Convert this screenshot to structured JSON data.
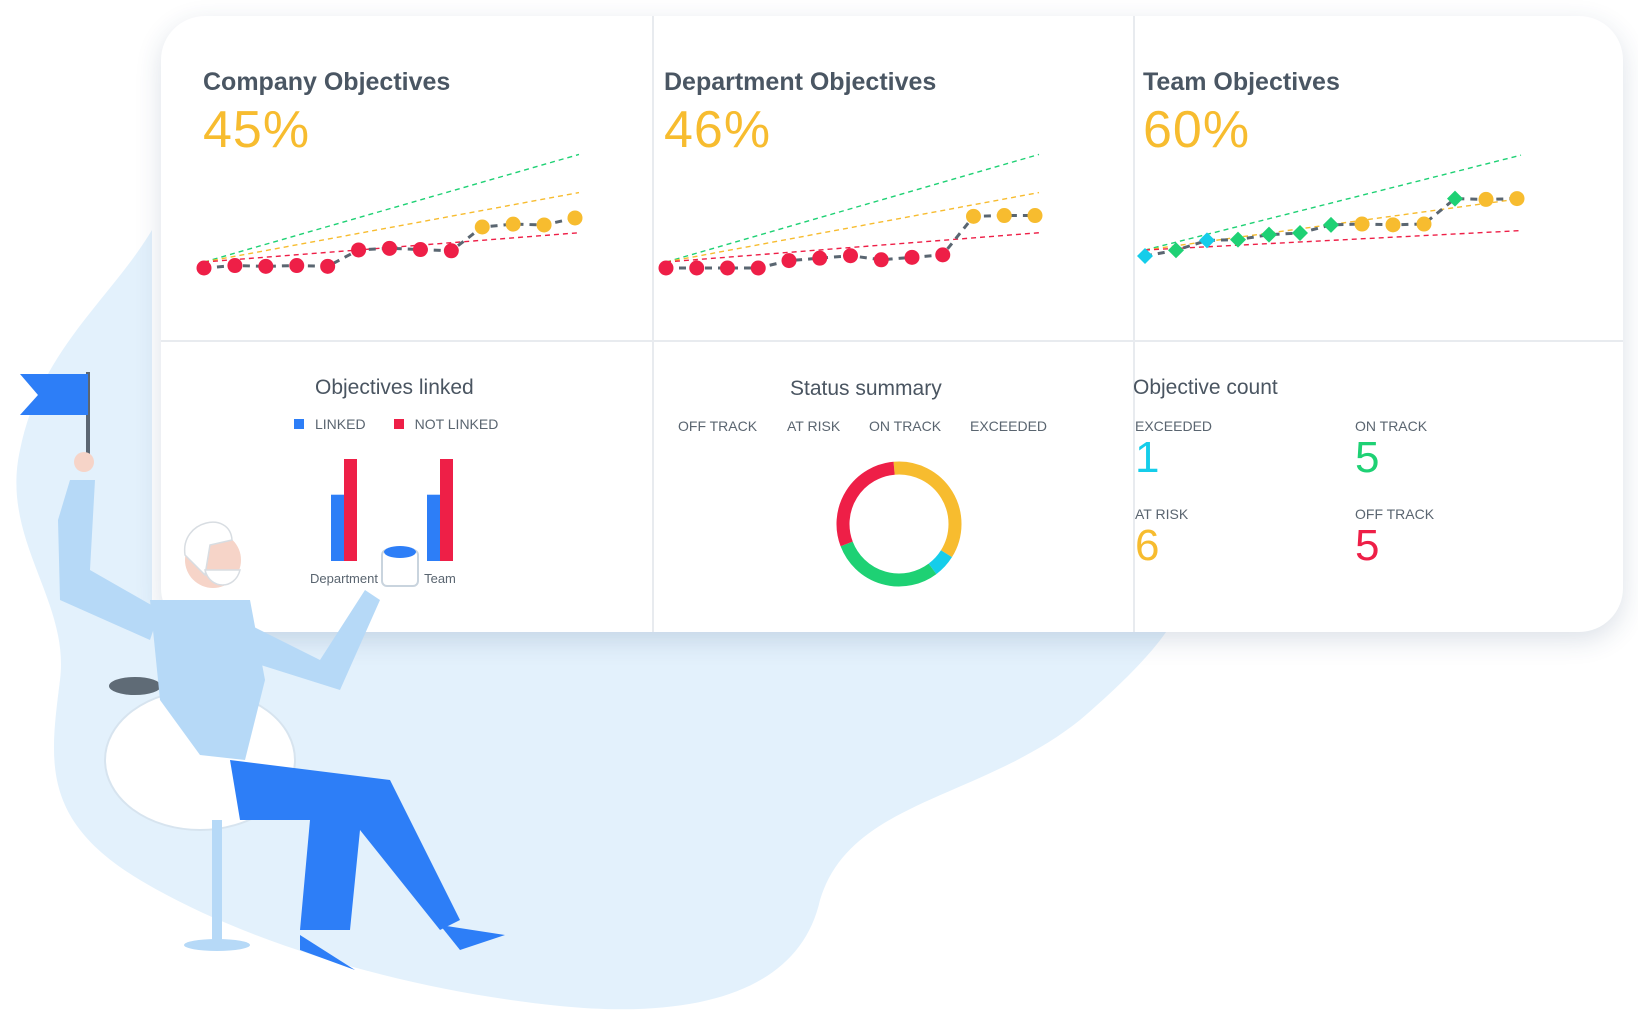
{
  "colors": {
    "accent_yellow": "#f7bc2f",
    "off_track": "#ee1f47",
    "at_risk": "#f7bc2f",
    "on_track": "#1ed174",
    "exceeded": "#15cdea",
    "linked": "#2d7ef7",
    "not_linked": "#ee1f47",
    "title_text": "#4a5663",
    "backdrop": "#e3f1fc"
  },
  "company": {
    "title": "Company Objectives",
    "percent": "45%",
    "chart_data": {
      "type": "line",
      "title": "Company Objectives",
      "x": [
        1,
        2,
        3,
        4,
        5,
        6,
        7,
        8,
        9,
        10,
        11,
        12,
        13
      ],
      "values": [
        0.0,
        0.06,
        0.04,
        0.06,
        0.04,
        0.44,
        0.48,
        0.45,
        0.42,
        1.0,
        1.07,
        1.05,
        1.22
      ],
      "point_status": [
        "off_track",
        "off_track",
        "off_track",
        "off_track",
        "off_track",
        "off_track",
        "off_track",
        "off_track",
        "off_track",
        "at_risk",
        "at_risk",
        "at_risk",
        "at_risk"
      ],
      "trend_lines": [
        {
          "status": "on_track",
          "y_end": 2.77
        },
        {
          "status": "at_risk",
          "y_end": 1.84
        },
        {
          "status": "off_track",
          "y_end": 0.86
        }
      ]
    }
  },
  "department": {
    "title": "Department Objectives",
    "percent": "46%",
    "chart_data": {
      "type": "line",
      "title": "Department Objectives",
      "x": [
        1,
        2,
        3,
        4,
        5,
        6,
        7,
        8,
        9,
        10,
        11,
        12,
        13
      ],
      "values": [
        0.0,
        0.0,
        0.0,
        0.0,
        0.18,
        0.24,
        0.3,
        0.2,
        0.26,
        0.32,
        1.26,
        1.28,
        1.28
      ],
      "point_status": [
        "off_track",
        "off_track",
        "off_track",
        "off_track",
        "off_track",
        "off_track",
        "off_track",
        "off_track",
        "off_track",
        "off_track",
        "at_risk",
        "at_risk",
        "at_risk"
      ],
      "trend_lines": [
        {
          "status": "on_track",
          "y_end": 2.77
        },
        {
          "status": "at_risk",
          "y_end": 1.84
        },
        {
          "status": "off_track",
          "y_end": 0.86
        }
      ]
    }
  },
  "team": {
    "title": "Team Objectives",
    "percent": "60%",
    "chart_data": {
      "type": "line",
      "title": "Team Objectives",
      "x": [
        1,
        2,
        3,
        4,
        5,
        6,
        7,
        8,
        9,
        10,
        11,
        12,
        13
      ],
      "values": [
        0.0,
        0.14,
        0.38,
        0.4,
        0.52,
        0.56,
        0.76,
        0.78,
        0.76,
        0.78,
        1.4,
        1.38,
        1.4
      ],
      "point_status": [
        "exceeded",
        "on_track",
        "exceeded",
        "on_track",
        "on_track",
        "on_track",
        "on_track",
        "at_risk",
        "at_risk",
        "at_risk",
        "on_track",
        "at_risk",
        "at_risk"
      ],
      "trend_lines": [
        {
          "status": "on_track",
          "y_end": 2.46
        },
        {
          "status": "at_risk",
          "y_end": 1.4
        },
        {
          "status": "off_track",
          "y_end": 0.62
        }
      ]
    }
  },
  "linked": {
    "title": "Objectives linked",
    "legend": {
      "linked": "LINKED",
      "not_linked": "NOT LINKED"
    },
    "chart_data": {
      "type": "bar",
      "categories": [
        "Department",
        "Team"
      ],
      "series": [
        {
          "name": "LINKED",
          "values": [
            65,
            65
          ]
        },
        {
          "name": "NOT LINKED",
          "values": [
            100,
            100
          ]
        }
      ],
      "ylim": [
        0,
        100
      ]
    }
  },
  "status": {
    "title": "Status summary",
    "labels": {
      "off_track": "OFF TRACK",
      "at_risk": "AT RISK",
      "on_track": "ON TRACK",
      "exceeded": "EXCEEDED"
    },
    "chart_data": {
      "type": "pie",
      "categories": [
        "AT RISK",
        "EXCEEDED",
        "ON TRACK",
        "OFF TRACK"
      ],
      "values": [
        6,
        1,
        5,
        5
      ],
      "donut": true,
      "start_angle_deg": -5
    }
  },
  "count": {
    "title": "Objective count",
    "exceeded": {
      "label": "EXCEEDED",
      "value": "1"
    },
    "on_track": {
      "label": "ON TRACK",
      "value": "5"
    },
    "at_risk": {
      "label": "AT RISK",
      "value": "6"
    },
    "off_track": {
      "label": "OFF TRACK",
      "value": "5"
    }
  }
}
